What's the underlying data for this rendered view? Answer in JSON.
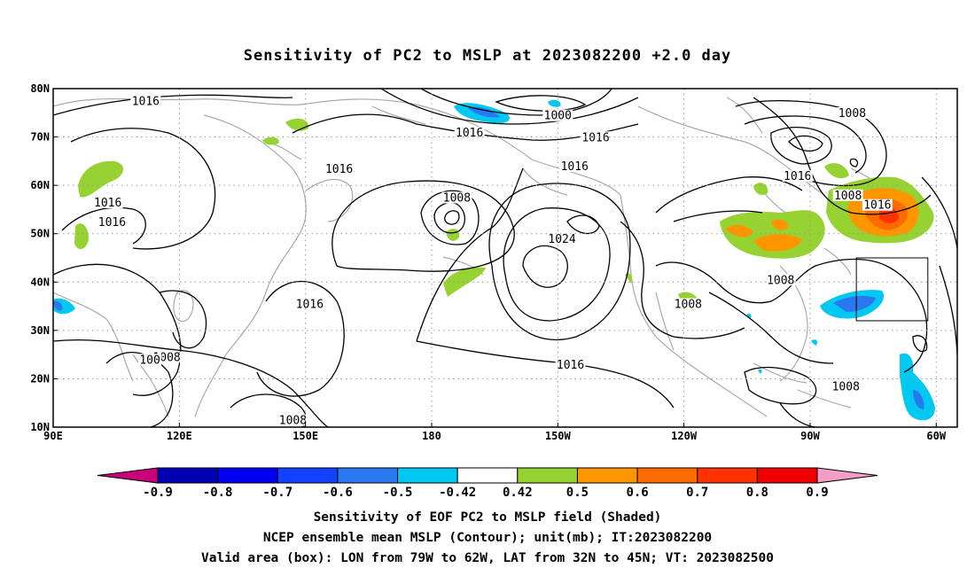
{
  "title": "Sensitivity of PC2 to MSLP at 2023082200 +2.0 day",
  "map": {
    "lon_range_deg_east": [
      90,
      305
    ],
    "lat_range": [
      10,
      80
    ],
    "x_ticks": [
      {
        "lon": 90,
        "label": "90E"
      },
      {
        "lon": 120,
        "label": "120E"
      },
      {
        "lon": 150,
        "label": "150E"
      },
      {
        "lon": 180,
        "label": "180"
      },
      {
        "lon": 210,
        "label": "150W"
      },
      {
        "lon": 240,
        "label": "120W"
      },
      {
        "lon": 270,
        "label": "90W"
      },
      {
        "lon": 300,
        "label": "60W"
      }
    ],
    "y_ticks": [
      {
        "lat": 80,
        "label": "80N"
      },
      {
        "lat": 70,
        "label": "70N"
      },
      {
        "lat": 60,
        "label": "60N"
      },
      {
        "lat": 50,
        "label": "50N"
      },
      {
        "lat": 40,
        "label": "40N"
      },
      {
        "lat": 30,
        "label": "30N"
      },
      {
        "lat": 20,
        "label": "20N"
      },
      {
        "lat": 10,
        "label": "10N"
      }
    ],
    "grid": "dotted",
    "contour_labels": [
      {
        "text": "1016",
        "lon": 112,
        "lat": 77
      },
      {
        "text": "1016",
        "lon": 158,
        "lat": 63
      },
      {
        "text": "1016",
        "lon": 103,
        "lat": 56
      },
      {
        "text": "1016",
        "lon": 104,
        "lat": 52
      },
      {
        "text": "1016",
        "lon": 189,
        "lat": 70.5
      },
      {
        "text": "1016",
        "lon": 219,
        "lat": 69.5
      },
      {
        "text": "1016",
        "lon": 214,
        "lat": 63.5
      },
      {
        "text": "1016",
        "lon": 151,
        "lat": 35
      },
      {
        "text": "1016",
        "lon": 213,
        "lat": 22.5
      },
      {
        "text": "1016",
        "lon": 267,
        "lat": 61.5
      },
      {
        "text": "1016",
        "lon": 286,
        "lat": 55.5
      },
      {
        "text": "1008",
        "lon": 186,
        "lat": 57
      },
      {
        "text": "1008",
        "lon": 280,
        "lat": 74.5
      },
      {
        "text": "1008",
        "lon": 279,
        "lat": 57.5
      },
      {
        "text": "1008",
        "lon": 263,
        "lat": 40
      },
      {
        "text": "1008",
        "lon": 241,
        "lat": 35
      },
      {
        "text": "1008",
        "lon": 278.5,
        "lat": 18
      },
      {
        "text": "1008",
        "lon": 117,
        "lat": 24
      },
      {
        "text": "1008",
        "lon": 147,
        "lat": 11
      },
      {
        "text": "1000",
        "lon": 210,
        "lat": 74
      },
      {
        "text": "1024",
        "lon": 211,
        "lat": 48.5
      },
      {
        "text": "100",
        "lon": 113,
        "lat": 23.5
      }
    ],
    "valid_box": {
      "lon": [
        281,
        298
      ],
      "lat": [
        32,
        45
      ]
    }
  },
  "colorbar": {
    "ticks": [
      "-0.9",
      "-0.8",
      "-0.7",
      "-0.6",
      "-0.5",
      "-0.42",
      "0.42",
      "0.5",
      "0.6",
      "0.7",
      "0.8",
      "0.9"
    ],
    "colors": [
      "#c8007a",
      "#0000b4",
      "#0000f0",
      "#1440ff",
      "#2a78f0",
      "#00c8f0",
      "#ffffff",
      "#96d232",
      "#ff9600",
      "#ff6a00",
      "#ff3200",
      "#f00000",
      "#f39ec6"
    ]
  },
  "captions": [
    "Sensitivity of EOF PC2 to MSLP field (Shaded)",
    "NCEP ensemble mean MSLP (Contour); unit(mb); IT:2023082200",
    "Valid area (box): LON from 79W to 62W, LAT from 32N to 45N; VT: 2023082500"
  ]
}
